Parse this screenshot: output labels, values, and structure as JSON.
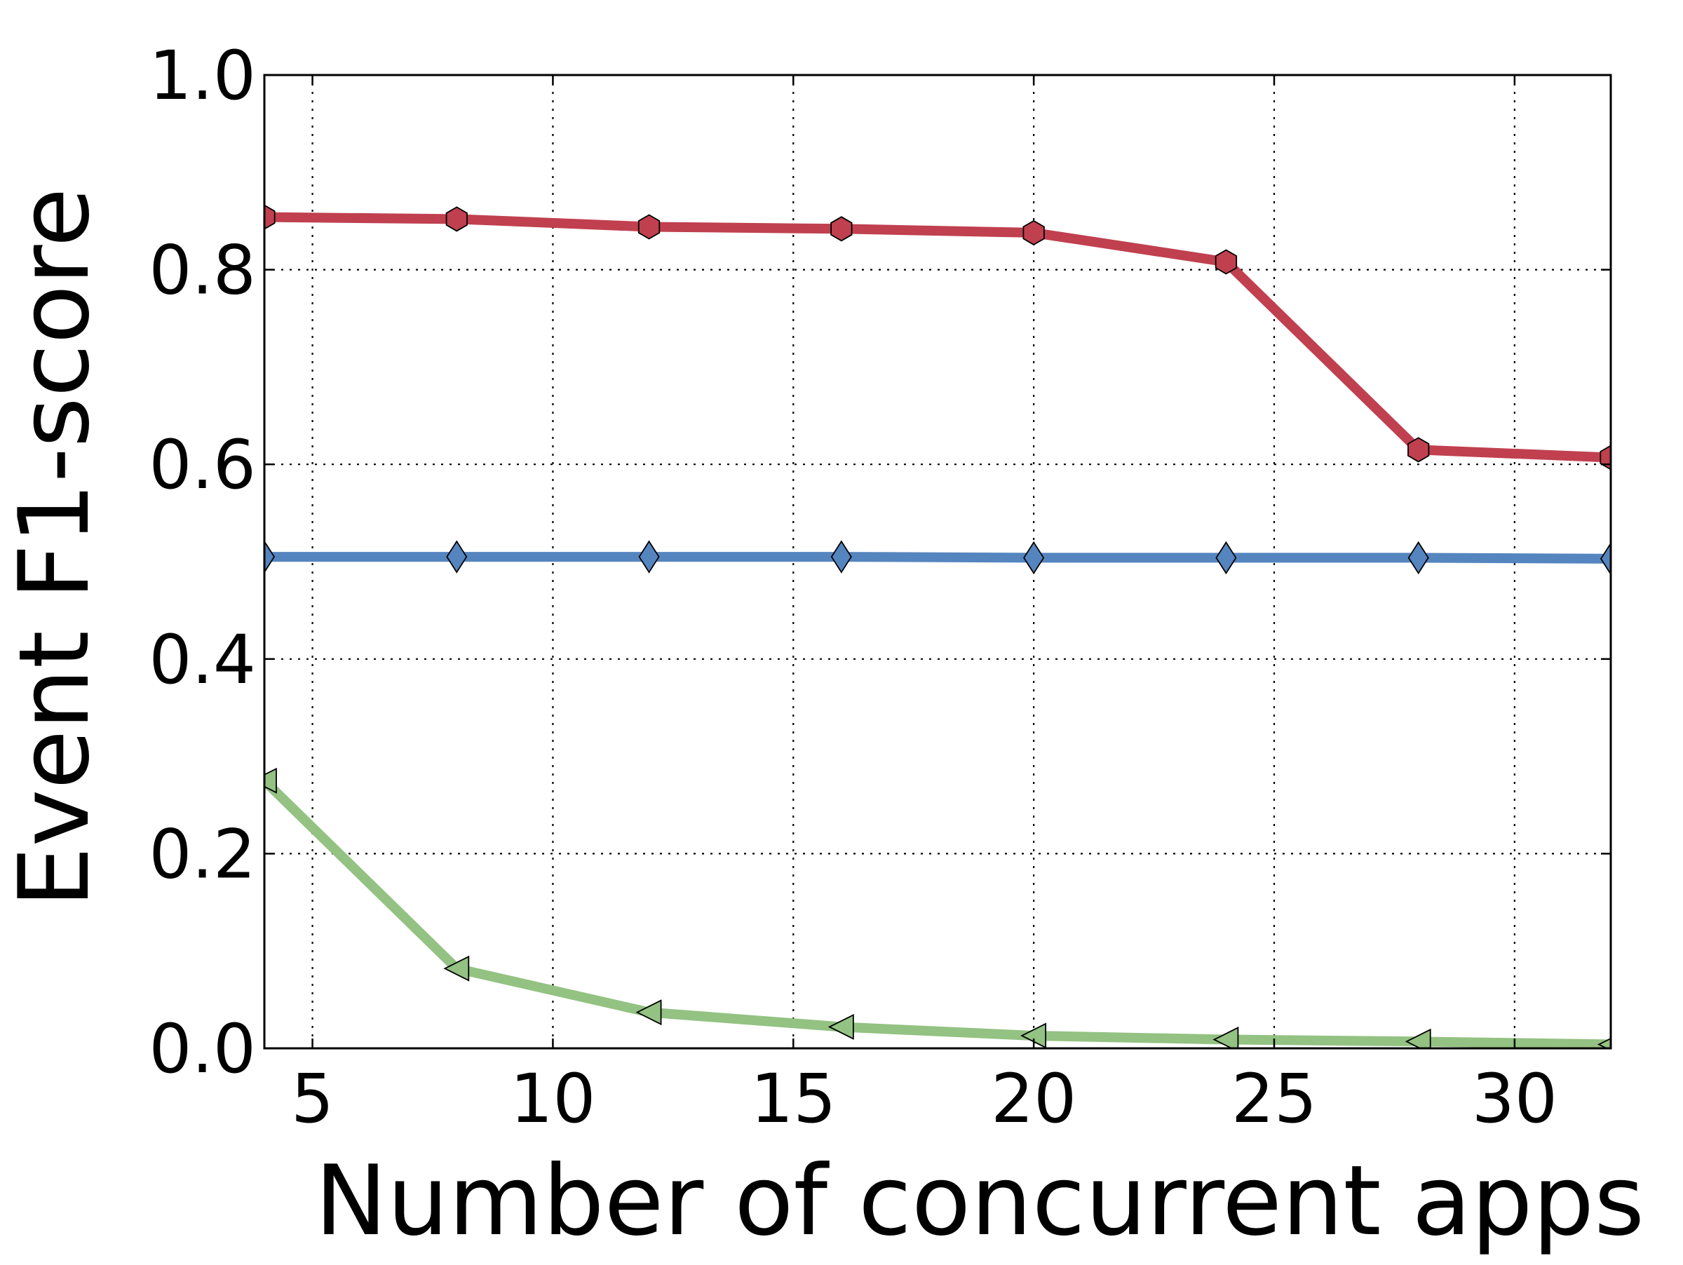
{
  "chart_data": {
    "type": "line",
    "xlabel": "Number of concurrent apps",
    "ylabel": "Event F1-score",
    "xlim": [
      4,
      32
    ],
    "ylim": [
      0.0,
      1.0
    ],
    "xticks": [
      5,
      10,
      15,
      20,
      25,
      30
    ],
    "xtick_labels": [
      "5",
      "10",
      "15",
      "20",
      "25",
      "30"
    ],
    "yticks": [
      0.0,
      0.2,
      0.4,
      0.6,
      0.8,
      1.0
    ],
    "ytick_labels": [
      "0.0",
      "0.2",
      "0.4",
      "0.6",
      "0.8",
      "1.0"
    ],
    "grid": true,
    "x": [
      4,
      8,
      12,
      16,
      20,
      24,
      28,
      32
    ],
    "series": [
      {
        "values": [
          0.854,
          0.852,
          0.844,
          0.842,
          0.838,
          0.808,
          0.615,
          0.607
        ],
        "color": "#c0404f",
        "marker": "hexagon"
      },
      {
        "values": [
          0.505,
          0.505,
          0.505,
          0.505,
          0.504,
          0.504,
          0.504,
          0.503
        ],
        "color": "#5585bf",
        "marker": "diamond"
      },
      {
        "values": [
          0.275,
          0.082,
          0.037,
          0.022,
          0.013,
          0.009,
          0.007,
          0.004
        ],
        "color": "#93c282",
        "marker": "triangle-left"
      }
    ]
  }
}
